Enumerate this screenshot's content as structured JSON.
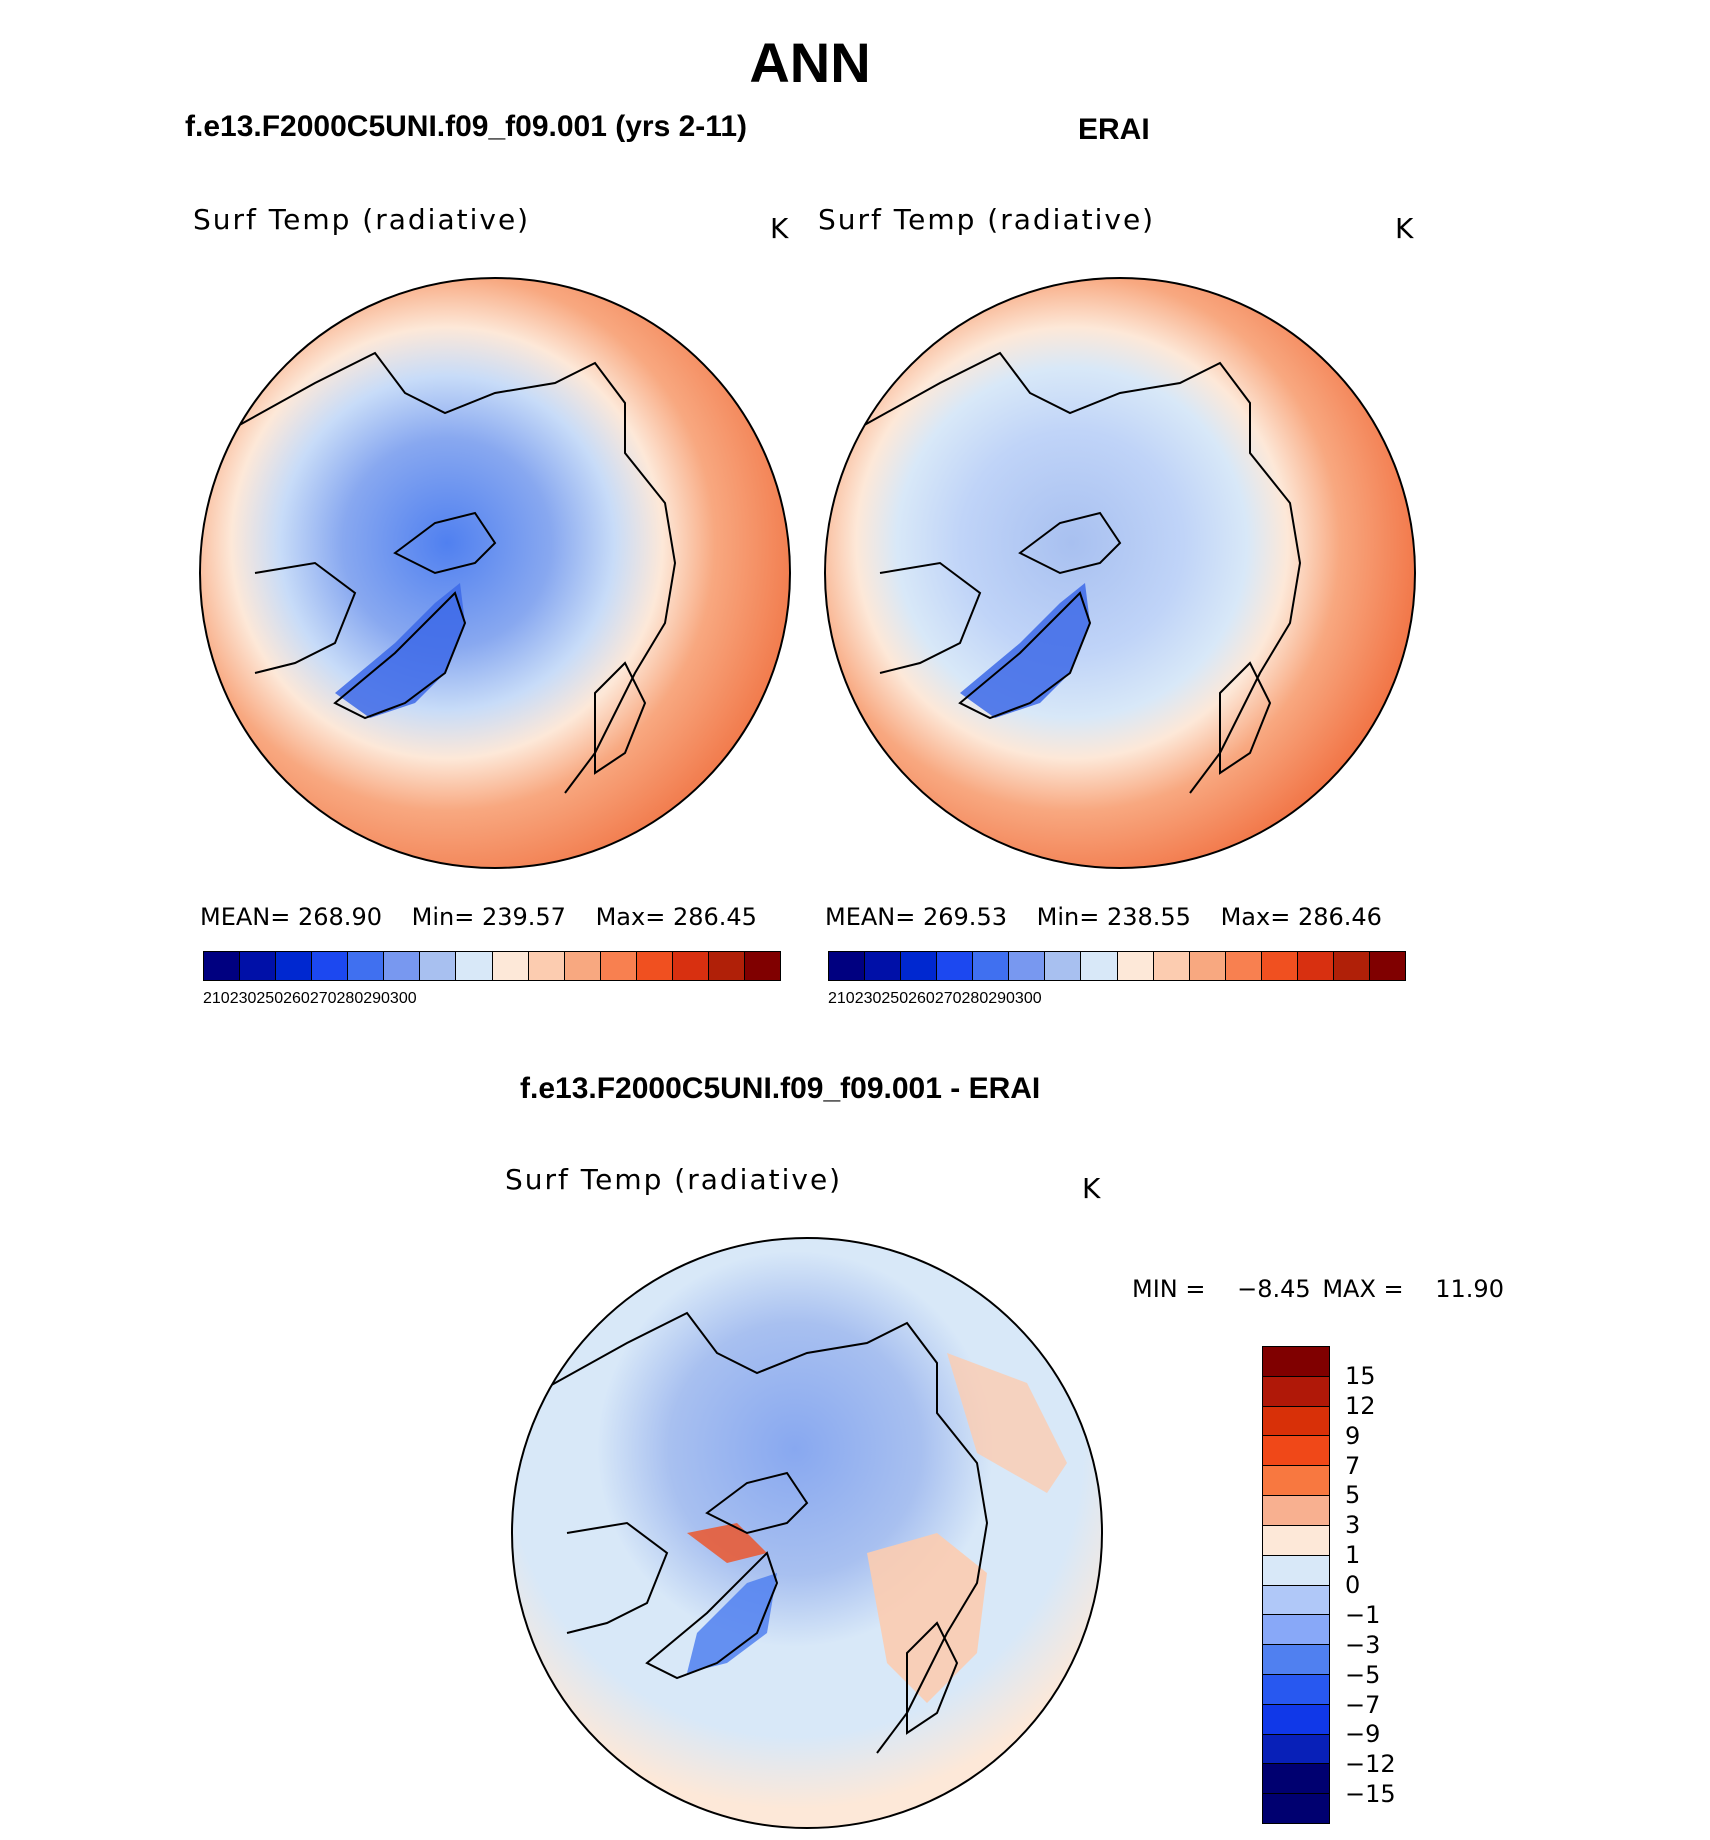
{
  "figure": {
    "title": "ANN",
    "diff_title": "f.e13.F2000C5UNI.f09_f09.001 - ERAI"
  },
  "panels": [
    {
      "case_title": "f.e13.F2000C5UNI.f09_f09.001 (yrs 2-11)",
      "variable": "Surf Temp (radiative)",
      "units": "K",
      "stats": {
        "mean_label": "MEAN=",
        "mean": "268.90",
        "min_label": "Min=",
        "min": "239.57",
        "max_label": "Max=",
        "max": "286.45"
      }
    },
    {
      "case_title": "ERAI",
      "variable": "Surf Temp (radiative)",
      "units": "K",
      "stats": {
        "mean_label": "MEAN=",
        "mean": "269.53",
        "min_label": "Min=",
        "min": "238.55",
        "max_label": "Max=",
        "max": "286.46"
      }
    }
  ],
  "diff_panel": {
    "variable": "Surf Temp (radiative)",
    "units": "K",
    "stats": {
      "min_label": "MIN =",
      "min": "−8.45",
      "max_label": "MAX =",
      "max": "11.90"
    }
  },
  "abs_colorbar": {
    "colors": [
      "#000080",
      "#0010a8",
      "#0028d0",
      "#1c48f0",
      "#4070f0",
      "#7898f0",
      "#a8c0f0",
      "#d8e8f8",
      "#fde8d8",
      "#fcccb0",
      "#f8a880",
      "#f88050",
      "#f05020",
      "#d83010",
      "#b02008",
      "#800000"
    ],
    "labels": [
      "210",
      "230",
      "250",
      "260",
      "270",
      "280",
      "290",
      "300"
    ]
  },
  "diff_colorbar": {
    "colors": [
      "#800000",
      "#b01808",
      "#d83008",
      "#f04818",
      "#f87840",
      "#f8b090",
      "#fde8d8",
      "#d8e8f8",
      "#b0c8f8",
      "#88a8f8",
      "#5080f0",
      "#2858f0",
      "#1038e8",
      "#0820b8",
      "#000070"
    ],
    "labels": [
      "15",
      "12",
      "9",
      "7",
      "5",
      "3",
      "1",
      "0",
      "−1",
      "−3",
      "−5",
      "−7",
      "−9",
      "−12",
      "−15"
    ]
  }
}
